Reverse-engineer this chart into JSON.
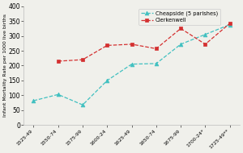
{
  "x_labels": [
    "1525-49",
    "1550-74",
    "1575-99",
    "1600-24",
    "1625-49",
    "1650-74",
    "1675-99",
    "1700-24*",
    "1725-49**"
  ],
  "cheapside": [
    82,
    103,
    68,
    150,
    205,
    207,
    272,
    305,
    338
  ],
  "clerkenwell": [
    null,
    215,
    220,
    268,
    272,
    257,
    325,
    272,
    342
  ],
  "cheapside_color": "#40c0c0",
  "clerkenwell_color": "#d43030",
  "ylabel": "Infant Mortality Rate per 1000 live births",
  "ylim": [
    0,
    400
  ],
  "yticks": [
    0,
    50,
    100,
    150,
    200,
    250,
    300,
    350,
    400
  ],
  "legend_cheapside": "Cheapside (5 parishes)",
  "legend_clerkenwell": "Clerkenwell",
  "bg_color": "#f0f0eb"
}
